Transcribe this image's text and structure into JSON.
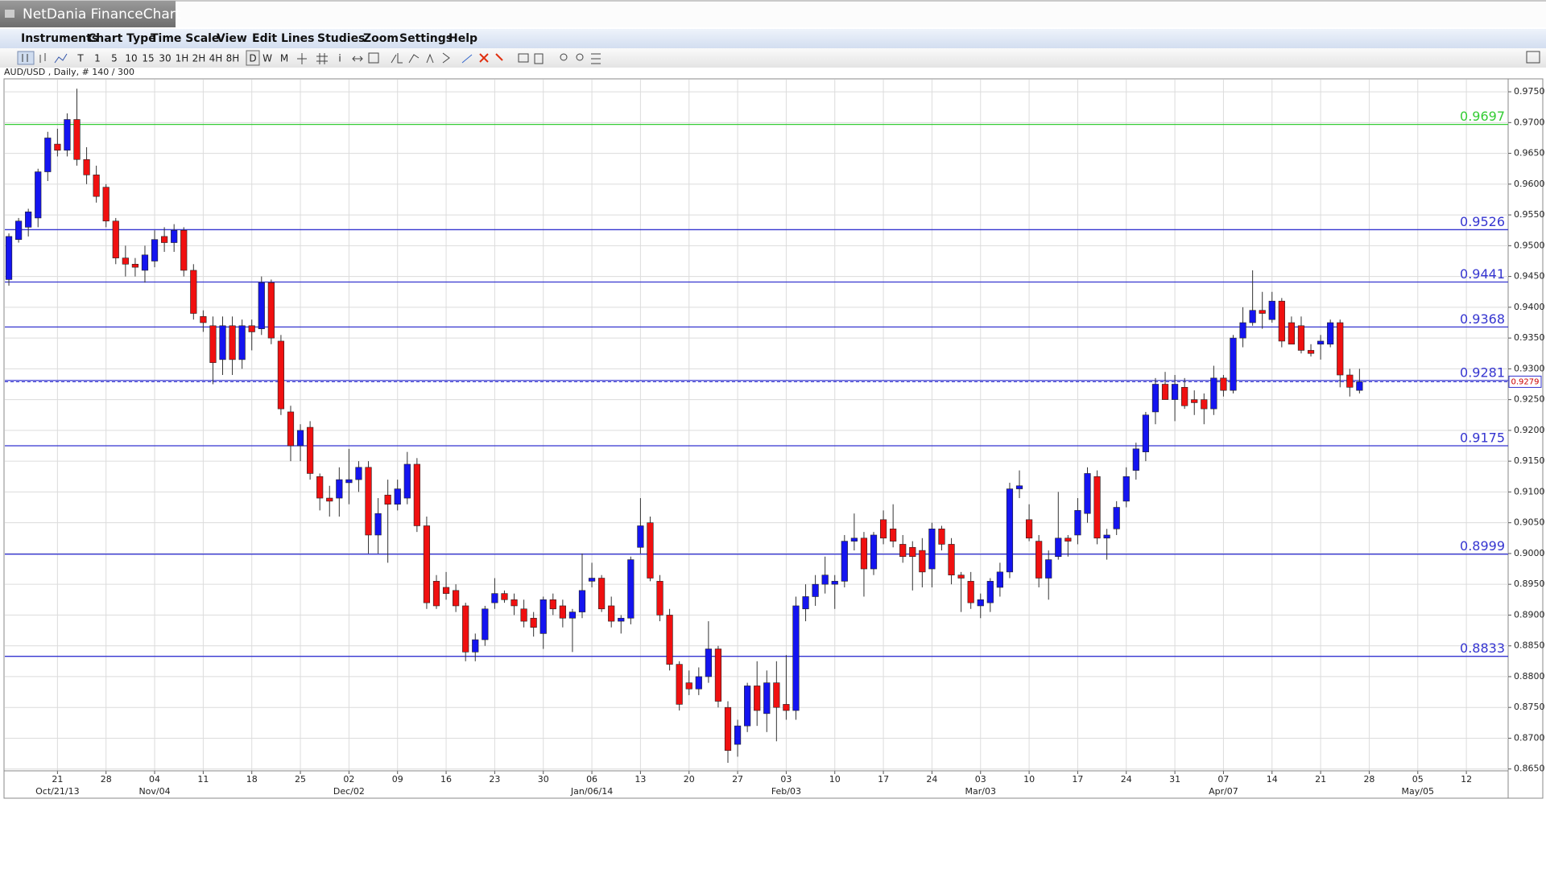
{
  "window_title": "NetDania FinanceChart",
  "menu": [
    "Instruments",
    "Chart Type",
    "Time Scale",
    "View",
    "Edit",
    "Lines",
    "Studies",
    "Zoom",
    "Settings",
    "Help"
  ],
  "toolbar": [
    "T",
    "1",
    "5",
    "10",
    "15",
    "30",
    "1H",
    "2H",
    "4H",
    "8H",
    "D",
    "W",
    "M",
    "i"
  ],
  "chart_data": {
    "type": "candlestick",
    "instrument_label": "AUD/USD , Daily, # 140 / 300",
    "up_color": "#1414f0",
    "down_color": "#f01010",
    "ylim": [
      0.8647,
      0.9771
    ],
    "yticks": [
      {
        "value": 0.865,
        "label": "0.8650"
      },
      {
        "value": 0.87,
        "label": "0.8700"
      },
      {
        "value": 0.875,
        "label": "0.8750"
      },
      {
        "value": 0.88,
        "label": "0.8800"
      },
      {
        "value": 0.885,
        "label": "0.8850"
      },
      {
        "value": 0.89,
        "label": "0.8900"
      },
      {
        "value": 0.895,
        "label": "0.8950"
      },
      {
        "value": 0.9,
        "label": "0.9000"
      },
      {
        "value": 0.905,
        "label": "0.9050"
      },
      {
        "value": 0.91,
        "label": "0.9100"
      },
      {
        "value": 0.915,
        "label": "0.9150"
      },
      {
        "value": 0.92,
        "label": "0.9200"
      },
      {
        "value": 0.925,
        "label": "0.9250"
      },
      {
        "value": 0.93,
        "label": "0.9300"
      },
      {
        "value": 0.935,
        "label": "0.9350"
      },
      {
        "value": 0.94,
        "label": "0.9400"
      },
      {
        "value": 0.945,
        "label": "0.9450"
      },
      {
        "value": 0.95,
        "label": "0.9500"
      },
      {
        "value": 0.955,
        "label": "0.9550"
      },
      {
        "value": 0.96,
        "label": "0.9600"
      },
      {
        "value": 0.965,
        "label": "0.9650"
      },
      {
        "value": 0.97,
        "label": "0.9700"
      },
      {
        "value": 0.975,
        "label": "0.9750"
      }
    ],
    "xticks": [
      {
        "label": "21",
        "sublabel": "Oct/21/13"
      },
      {
        "label": "28"
      },
      {
        "label": "04",
        "sublabel": "Nov/04"
      },
      {
        "label": "11"
      },
      {
        "label": "18"
      },
      {
        "label": "25"
      },
      {
        "label": "02",
        "sublabel": "Dec/02"
      },
      {
        "label": "09"
      },
      {
        "label": "16"
      },
      {
        "label": "23"
      },
      {
        "label": "30"
      },
      {
        "label": "06",
        "sublabel": "Jan/06/14"
      },
      {
        "label": "13"
      },
      {
        "label": "20"
      },
      {
        "label": "27"
      },
      {
        "label": "03",
        "sublabel": "Feb/03"
      },
      {
        "label": "10"
      },
      {
        "label": "17"
      },
      {
        "label": "24"
      },
      {
        "label": "03",
        "sublabel": "Mar/03"
      },
      {
        "label": "10"
      },
      {
        "label": "17"
      },
      {
        "label": "24"
      },
      {
        "label": "31"
      },
      {
        "label": "07",
        "sublabel": "Apr/07"
      },
      {
        "label": "14"
      },
      {
        "label": "21"
      },
      {
        "label": "28"
      },
      {
        "label": "05",
        "sublabel": "May/05"
      },
      {
        "label": "12"
      }
    ],
    "grid": true,
    "levels": [
      {
        "value": 0.9697,
        "color": "#33cc33"
      },
      {
        "value": 0.9526,
        "color": "#3535d0"
      },
      {
        "value": 0.9441,
        "color": "#3535d0"
      },
      {
        "value": 0.9368,
        "color": "#3535d0"
      },
      {
        "value": 0.9281,
        "color": "#3535d0"
      },
      {
        "value": 0.9175,
        "color": "#3535d0"
      },
      {
        "value": 0.8999,
        "color": "#3535d0"
      },
      {
        "value": 0.8833,
        "color": "#3535d0"
      }
    ],
    "last_price": 0.9279,
    "ohlc": [
      [
        0.9445,
        0.952,
        0.9435,
        0.9515
      ],
      [
        0.951,
        0.9545,
        0.9505,
        0.954
      ],
      [
        0.953,
        0.956,
        0.9515,
        0.9555
      ],
      [
        0.9545,
        0.9625,
        0.953,
        0.962
      ],
      [
        0.962,
        0.9685,
        0.9605,
        0.9675
      ],
      [
        0.9665,
        0.969,
        0.9645,
        0.9655
      ],
      [
        0.9655,
        0.9715,
        0.9645,
        0.9705
      ],
      [
        0.9705,
        0.9755,
        0.963,
        0.964
      ],
      [
        0.964,
        0.966,
        0.96,
        0.9615
      ],
      [
        0.9615,
        0.963,
        0.957,
        0.958
      ],
      [
        0.9595,
        0.96,
        0.953,
        0.954
      ],
      [
        0.954,
        0.9545,
        0.947,
        0.948
      ],
      [
        0.948,
        0.95,
        0.945,
        0.947
      ],
      [
        0.947,
        0.948,
        0.945,
        0.9465
      ],
      [
        0.946,
        0.95,
        0.944,
        0.9485
      ],
      [
        0.9475,
        0.9525,
        0.9465,
        0.951
      ],
      [
        0.9515,
        0.953,
        0.949,
        0.9505
      ],
      [
        0.9505,
        0.9535,
        0.949,
        0.9525
      ],
      [
        0.9525,
        0.953,
        0.945,
        0.946
      ],
      [
        0.946,
        0.947,
        0.938,
        0.939
      ],
      [
        0.9385,
        0.9395,
        0.936,
        0.9375
      ],
      [
        0.937,
        0.9385,
        0.9275,
        0.931
      ],
      [
        0.9315,
        0.9385,
        0.929,
        0.937
      ],
      [
        0.937,
        0.9385,
        0.929,
        0.9315
      ],
      [
        0.9315,
        0.938,
        0.93,
        0.937
      ],
      [
        0.937,
        0.938,
        0.933,
        0.936
      ],
      [
        0.9365,
        0.945,
        0.9355,
        0.944
      ],
      [
        0.944,
        0.9445,
        0.934,
        0.935
      ],
      [
        0.9345,
        0.9355,
        0.9225,
        0.9235
      ],
      [
        0.923,
        0.924,
        0.915,
        0.9175
      ],
      [
        0.9175,
        0.921,
        0.915,
        0.92
      ],
      [
        0.9205,
        0.9215,
        0.912,
        0.913
      ],
      [
        0.9125,
        0.913,
        0.907,
        0.909
      ],
      [
        0.909,
        0.911,
        0.906,
        0.9085
      ],
      [
        0.909,
        0.914,
        0.906,
        0.912
      ],
      [
        0.9115,
        0.917,
        0.908,
        0.912
      ],
      [
        0.912,
        0.915,
        0.91,
        0.914
      ],
      [
        0.914,
        0.915,
        0.9,
        0.903
      ],
      [
        0.903,
        0.909,
        0.9,
        0.9065
      ],
      [
        0.9095,
        0.912,
        0.8985,
        0.908
      ],
      [
        0.908,
        0.912,
        0.907,
        0.9105
      ],
      [
        0.909,
        0.9165,
        0.908,
        0.9145
      ],
      [
        0.9145,
        0.9155,
        0.9035,
        0.9045
      ],
      [
        0.9045,
        0.906,
        0.891,
        0.892
      ],
      [
        0.8955,
        0.8965,
        0.891,
        0.8915
      ],
      [
        0.8945,
        0.897,
        0.8925,
        0.8935
      ],
      [
        0.894,
        0.895,
        0.8905,
        0.8915
      ],
      [
        0.8915,
        0.892,
        0.8825,
        0.884
      ],
      [
        0.884,
        0.887,
        0.8825,
        0.886
      ],
      [
        0.886,
        0.8915,
        0.885,
        0.891
      ],
      [
        0.892,
        0.896,
        0.891,
        0.8935
      ],
      [
        0.8935,
        0.894,
        0.892,
        0.8925
      ],
      [
        0.8925,
        0.8935,
        0.89,
        0.8915
      ],
      [
        0.891,
        0.8925,
        0.888,
        0.889
      ],
      [
        0.8895,
        0.8905,
        0.8865,
        0.888
      ],
      [
        0.887,
        0.893,
        0.8845,
        0.8925
      ],
      [
        0.8925,
        0.8935,
        0.89,
        0.891
      ],
      [
        0.8915,
        0.8925,
        0.888,
        0.8895
      ],
      [
        0.8895,
        0.891,
        0.884,
        0.8905
      ],
      [
        0.8905,
        0.9,
        0.8895,
        0.894
      ],
      [
        0.8955,
        0.8985,
        0.8945,
        0.896
      ],
      [
        0.896,
        0.8965,
        0.8905,
        0.891
      ],
      [
        0.8915,
        0.893,
        0.888,
        0.889
      ],
      [
        0.889,
        0.89,
        0.887,
        0.8895
      ],
      [
        0.8895,
        0.8995,
        0.8885,
        0.899
      ],
      [
        0.901,
        0.909,
        0.9,
        0.9045
      ],
      [
        0.905,
        0.906,
        0.8955,
        0.896
      ],
      [
        0.8955,
        0.8965,
        0.889,
        0.89
      ],
      [
        0.89,
        0.891,
        0.881,
        0.882
      ],
      [
        0.882,
        0.8825,
        0.8745,
        0.8755
      ],
      [
        0.879,
        0.881,
        0.877,
        0.878
      ],
      [
        0.878,
        0.8815,
        0.877,
        0.88
      ],
      [
        0.88,
        0.889,
        0.879,
        0.8845
      ],
      [
        0.8845,
        0.885,
        0.875,
        0.876
      ],
      [
        0.875,
        0.876,
        0.866,
        0.868
      ],
      [
        0.869,
        0.873,
        0.867,
        0.872
      ],
      [
        0.872,
        0.879,
        0.871,
        0.8785
      ],
      [
        0.8785,
        0.8825,
        0.872,
        0.8745
      ],
      [
        0.874,
        0.881,
        0.871,
        0.879
      ],
      [
        0.879,
        0.8825,
        0.8695,
        0.875
      ],
      [
        0.8755,
        0.8835,
        0.873,
        0.8745
      ],
      [
        0.8745,
        0.893,
        0.873,
        0.8915
      ],
      [
        0.891,
        0.895,
        0.889,
        0.893
      ],
      [
        0.893,
        0.8965,
        0.8915,
        0.895
      ],
      [
        0.895,
        0.8995,
        0.8935,
        0.8965
      ],
      [
        0.895,
        0.8965,
        0.891,
        0.8955
      ],
      [
        0.8955,
        0.903,
        0.8945,
        0.902
      ],
      [
        0.902,
        0.9065,
        0.9005,
        0.9025
      ],
      [
        0.9025,
        0.9035,
        0.893,
        0.8975
      ],
      [
        0.8975,
        0.9035,
        0.8965,
        0.903
      ],
      [
        0.9055,
        0.907,
        0.9015,
        0.9025
      ],
      [
        0.904,
        0.908,
        0.901,
        0.902
      ],
      [
        0.9015,
        0.903,
        0.8985,
        0.8995
      ],
      [
        0.901,
        0.902,
        0.894,
        0.8995
      ],
      [
        0.9005,
        0.9025,
        0.8945,
        0.897
      ],
      [
        0.8975,
        0.905,
        0.8945,
        0.904
      ],
      [
        0.904,
        0.9045,
        0.9005,
        0.9015
      ],
      [
        0.9015,
        0.9025,
        0.895,
        0.8965
      ],
      [
        0.8965,
        0.897,
        0.8905,
        0.896
      ],
      [
        0.8955,
        0.897,
        0.891,
        0.892
      ],
      [
        0.8915,
        0.8935,
        0.8895,
        0.8925
      ],
      [
        0.892,
        0.896,
        0.8905,
        0.8955
      ],
      [
        0.8945,
        0.8985,
        0.893,
        0.897
      ],
      [
        0.897,
        0.9115,
        0.896,
        0.9105
      ],
      [
        0.9105,
        0.9135,
        0.909,
        0.911
      ],
      [
        0.9055,
        0.908,
        0.902,
        0.9025
      ],
      [
        0.902,
        0.903,
        0.8945,
        0.896
      ],
      [
        0.896,
        0.9005,
        0.8925,
        0.899
      ],
      [
        0.8995,
        0.91,
        0.899,
        0.9025
      ],
      [
        0.9025,
        0.903,
        0.8995,
        0.902
      ],
      [
        0.903,
        0.909,
        0.9015,
        0.907
      ],
      [
        0.9065,
        0.914,
        0.905,
        0.913
      ],
      [
        0.9125,
        0.9135,
        0.9015,
        0.9025
      ],
      [
        0.9025,
        0.904,
        0.899,
        0.903
      ],
      [
        0.904,
        0.9085,
        0.903,
        0.9075
      ],
      [
        0.9085,
        0.914,
        0.9075,
        0.9125
      ],
      [
        0.9135,
        0.918,
        0.912,
        0.917
      ],
      [
        0.9165,
        0.923,
        0.915,
        0.9225
      ],
      [
        0.923,
        0.9285,
        0.921,
        0.9275
      ],
      [
        0.9275,
        0.9295,
        0.925,
        0.925
      ],
      [
        0.925,
        0.929,
        0.9215,
        0.9275
      ],
      [
        0.927,
        0.9285,
        0.9235,
        0.924
      ],
      [
        0.925,
        0.9265,
        0.9225,
        0.9245
      ],
      [
        0.925,
        0.926,
        0.921,
        0.9235
      ],
      [
        0.9235,
        0.9305,
        0.9225,
        0.9285
      ],
      [
        0.9285,
        0.929,
        0.9255,
        0.9265
      ],
      [
        0.9265,
        0.9355,
        0.926,
        0.935
      ],
      [
        0.935,
        0.94,
        0.9335,
        0.9375
      ],
      [
        0.9375,
        0.946,
        0.937,
        0.9395
      ],
      [
        0.9395,
        0.9425,
        0.9365,
        0.939
      ],
      [
        0.938,
        0.9425,
        0.9375,
        0.941
      ],
      [
        0.941,
        0.9415,
        0.9335,
        0.9345
      ],
      [
        0.9375,
        0.9385,
        0.934,
        0.934
      ],
      [
        0.937,
        0.9385,
        0.9325,
        0.933
      ],
      [
        0.933,
        0.934,
        0.932,
        0.9325
      ],
      [
        0.934,
        0.9355,
        0.9315,
        0.9345
      ],
      [
        0.934,
        0.938,
        0.9335,
        0.9375
      ],
      [
        0.9375,
        0.938,
        0.927,
        0.929
      ],
      [
        0.929,
        0.93,
        0.9255,
        0.927
      ],
      [
        0.9265,
        0.93,
        0.926,
        0.9279
      ]
    ]
  }
}
